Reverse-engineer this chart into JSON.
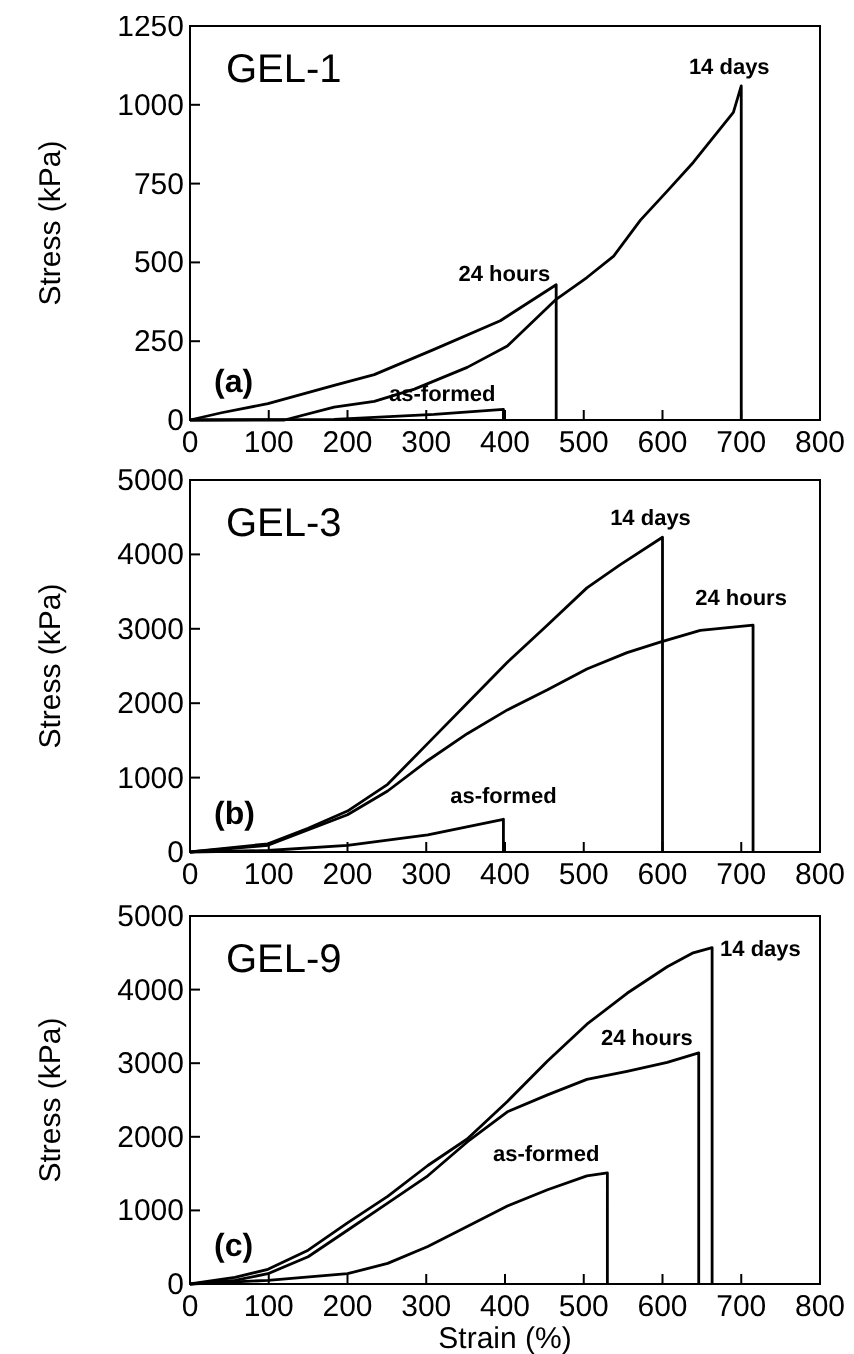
{
  "chart_data": [
    {
      "type": "line",
      "title": "GEL-1",
      "ylabel": "Stress (kPa)",
      "annotations": [
        "(a)"
      ],
      "xlim": [
        0,
        800
      ],
      "xticks": [
        0,
        100,
        200,
        300,
        400,
        500,
        600,
        700,
        800
      ],
      "ylim": [
        0,
        1250
      ],
      "yticks": [
        0,
        250,
        500,
        750,
        1000,
        1250
      ],
      "grid": false,
      "series": [
        {
          "name": "14 days",
          "color": "#000000",
          "x": [
            0,
            120,
            183,
            234,
            285,
            352,
            403,
            465,
            504,
            538,
            572,
            606,
            639,
            690,
            700,
            700
          ],
          "values": [
            0,
            0,
            41,
            59,
            98,
            167,
            235,
            383,
            452,
            520,
            634,
            726,
            817,
            976,
            1060,
            0
          ]
        },
        {
          "name": "24 hours",
          "color": "#000000",
          "x": [
            0,
            40,
            99,
            183,
            234,
            310,
            394,
            465,
            465
          ],
          "values": [
            0,
            23,
            52,
            110,
            144,
            224,
            315,
            429,
            0
          ]
        },
        {
          "name": "as-formed",
          "color": "#000000",
          "x": [
            0,
            183,
            310,
            398,
            398
          ],
          "values": [
            0,
            2,
            18,
            34,
            0
          ]
        }
      ]
    },
    {
      "type": "line",
      "title": "GEL-3",
      "ylabel": "Stress (kPa)",
      "annotations": [
        "(b)"
      ],
      "xlim": [
        0,
        800
      ],
      "xticks": [
        0,
        100,
        200,
        300,
        400,
        500,
        600,
        700,
        800
      ],
      "ylim": [
        0,
        5000
      ],
      "yticks": [
        0,
        1000,
        2000,
        3000,
        4000,
        5000
      ],
      "grid": false,
      "series": [
        {
          "name": "14 days",
          "color": "#000000",
          "x": [
            0,
            99,
            150,
            200,
            251,
            302,
            352,
            403,
            454,
            504,
            546,
            600,
            600
          ],
          "values": [
            0,
            110,
            320,
            550,
            910,
            1460,
            2000,
            2550,
            3050,
            3550,
            3860,
            4230,
            0
          ]
        },
        {
          "name": "24 hours",
          "color": "#000000",
          "x": [
            0,
            99,
            200,
            251,
            302,
            352,
            403,
            454,
            504,
            555,
            597,
            648,
            715,
            715
          ],
          "values": [
            0,
            90,
            500,
            820,
            1230,
            1590,
            1910,
            2180,
            2460,
            2680,
            2820,
            2980,
            3050,
            0
          ]
        },
        {
          "name": "as-formed",
          "color": "#000000",
          "x": [
            0,
            99,
            200,
            302,
            398,
            398
          ],
          "values": [
            0,
            20,
            90,
            230,
            440,
            0
          ]
        }
      ]
    },
    {
      "type": "line",
      "title": "GEL-9",
      "xlabel": "Strain (%)",
      "ylabel": "Stress (kPa)",
      "annotations": [
        "(c)"
      ],
      "xlim": [
        0,
        800
      ],
      "xticks": [
        0,
        100,
        200,
        300,
        400,
        500,
        600,
        700,
        800
      ],
      "ylim": [
        0,
        5000
      ],
      "yticks": [
        0,
        1000,
        2000,
        3000,
        4000,
        5000
      ],
      "grid": false,
      "series": [
        {
          "name": "14 days",
          "color": "#000000",
          "x": [
            0,
            57,
            99,
            150,
            200,
            251,
            302,
            352,
            403,
            454,
            504,
            555,
            606,
            639,
            663,
            663
          ],
          "values": [
            0,
            90,
            200,
            460,
            830,
            1190,
            1610,
            1970,
            2480,
            3030,
            3530,
            3950,
            4310,
            4500,
            4570,
            0
          ]
        },
        {
          "name": "24 hours",
          "color": "#000000",
          "x": [
            0,
            57,
            99,
            150,
            200,
            251,
            302,
            352,
            403,
            454,
            504,
            555,
            606,
            646,
            646
          ],
          "values": [
            0,
            50,
            140,
            370,
            730,
            1100,
            1470,
            1930,
            2340,
            2570,
            2780,
            2890,
            3010,
            3140,
            0
          ]
        },
        {
          "name": "as-formed",
          "color": "#000000",
          "x": [
            0,
            99,
            200,
            251,
            302,
            352,
            403,
            454,
            504,
            530,
            530
          ],
          "values": [
            0,
            50,
            140,
            280,
            510,
            780,
            1060,
            1280,
            1470,
            1510,
            0
          ]
        }
      ]
    }
  ]
}
